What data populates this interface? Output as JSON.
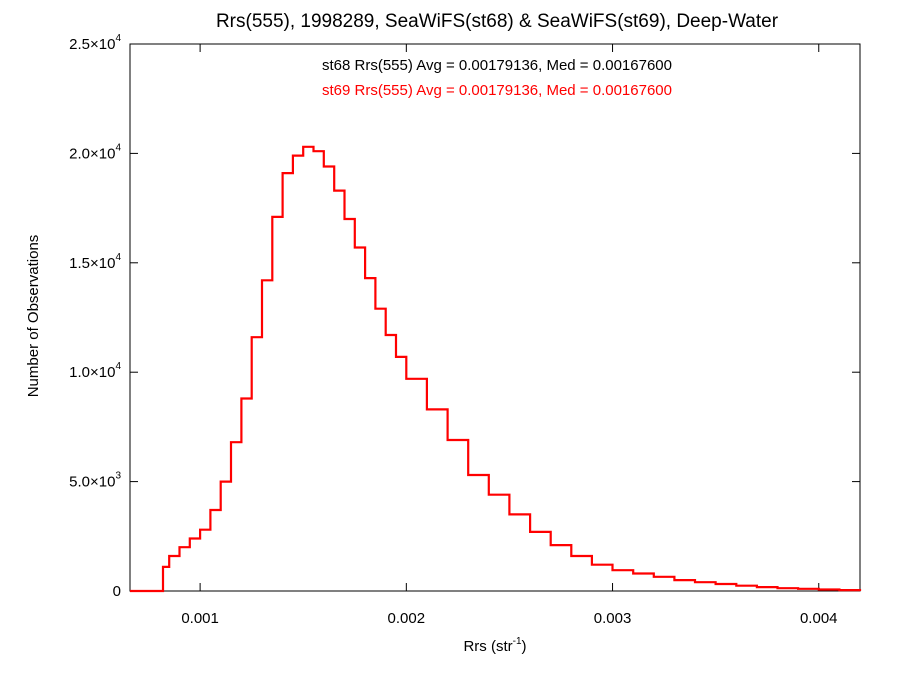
{
  "chart_data": {
    "type": "line",
    "title": "Rrs(555), 1998289, SeaWiFS(st68) & SeaWiFS(st69), Deep-Water",
    "xlabel": {
      "base": "Rrs (str",
      "sup": "-1",
      "end": ")"
    },
    "ylabel": "Number of Observations",
    "xlim": [
      0.00066,
      0.0042
    ],
    "ylim": [
      0,
      25000
    ],
    "grid": false,
    "step": true,
    "x_ticks": [
      {
        "value": 0.001,
        "label": "0.001"
      },
      {
        "value": 0.002,
        "label": "0.002"
      },
      {
        "value": 0.003,
        "label": "0.003"
      },
      {
        "value": 0.004,
        "label": "0.004"
      }
    ],
    "y_ticks": [
      {
        "value": 0,
        "mant": "0",
        "exp": ""
      },
      {
        "value": 5000,
        "mant": "5.0×10",
        "exp": "3"
      },
      {
        "value": 10000,
        "mant": "1.0×10",
        "exp": "4"
      },
      {
        "value": 15000,
        "mant": "1.5×10",
        "exp": "4"
      },
      {
        "value": 20000,
        "mant": "2.0×10",
        "exp": "4"
      },
      {
        "value": 25000,
        "mant": "2.5×10",
        "exp": "4"
      }
    ],
    "annotations": [
      {
        "text": "st68 Rrs(555) Avg = 0.00179136, Med = 0.00167600",
        "color": "#000000"
      },
      {
        "text": "st69 Rrs(555) Avg = 0.00179136, Med = 0.00167600",
        "color": "#ff0000"
      }
    ],
    "series": [
      {
        "color": "#ff0000",
        "x": [
          0.00066,
          0.0008,
          0.00082,
          0.00085,
          0.0009,
          0.00095,
          0.001,
          0.00105,
          0.0011,
          0.00115,
          0.0012,
          0.00125,
          0.0013,
          0.00135,
          0.0014,
          0.00145,
          0.0015,
          0.00155,
          0.0016,
          0.00165,
          0.0017,
          0.00175,
          0.0018,
          0.00185,
          0.0019,
          0.00195,
          0.002,
          0.0021,
          0.0022,
          0.0023,
          0.0024,
          0.0025,
          0.0026,
          0.0027,
          0.0028,
          0.0029,
          0.003,
          0.0031,
          0.0032,
          0.0033,
          0.0034,
          0.0035,
          0.0036,
          0.0037,
          0.0038,
          0.0039,
          0.004,
          0.0041,
          0.0042
        ],
        "y": [
          0,
          0,
          1100,
          1600,
          2000,
          2400,
          2800,
          3700,
          5000,
          6800,
          8800,
          11600,
          14200,
          17100,
          19100,
          19900,
          20300,
          20100,
          19400,
          18300,
          17000,
          15700,
          14300,
          12900,
          11700,
          10700,
          9700,
          8300,
          6900,
          5300,
          4400,
          3500,
          2700,
          2100,
          1600,
          1200,
          950,
          800,
          650,
          500,
          400,
          320,
          240,
          180,
          130,
          100,
          70,
          40,
          0
        ]
      }
    ]
  }
}
